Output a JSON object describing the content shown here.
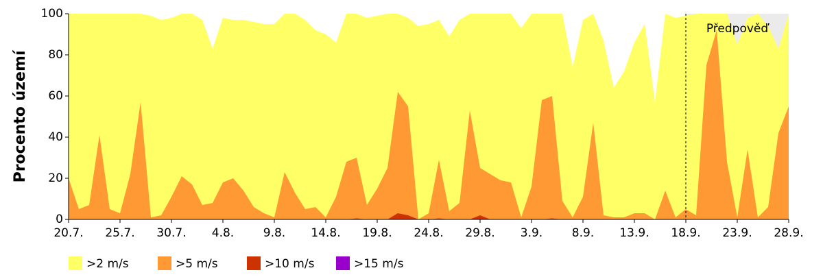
{
  "chart_data": {
    "type": "area",
    "y_label": "Procento území",
    "annotation": "Předpověď",
    "categories": [
      "20.7.",
      null,
      null,
      null,
      null,
      "25.7.",
      null,
      null,
      null,
      null,
      "30.7.",
      null,
      null,
      null,
      null,
      "4.8.",
      null,
      null,
      null,
      null,
      "9.8.",
      null,
      null,
      null,
      null,
      "14.8.",
      null,
      null,
      null,
      null,
      "19.8.",
      null,
      null,
      null,
      null,
      "24.8.",
      null,
      null,
      null,
      null,
      "29.8.",
      null,
      null,
      null,
      null,
      "3.9.",
      null,
      null,
      null,
      null,
      "8.9.",
      null,
      null,
      null,
      null,
      "13.9.",
      null,
      null,
      null,
      null,
      "18.9.",
      null,
      null,
      null,
      null,
      "23.9.",
      null,
      null,
      null,
      null,
      "28.9."
    ],
    "ylim": [
      0,
      100
    ],
    "yticks": [
      0,
      20,
      40,
      60,
      80,
      100
    ],
    "series": [
      {
        "name": ">2 m/s",
        "color": "#ffff66",
        "values": [
          100,
          100,
          100,
          100,
          100,
          100,
          100,
          100,
          99,
          97,
          98,
          100,
          100,
          97,
          83,
          98,
          97,
          97,
          96,
          95,
          95,
          100,
          100,
          97,
          92,
          90,
          86,
          100,
          100,
          98,
          99,
          100,
          100,
          98,
          94,
          95,
          97,
          89,
          97,
          100,
          100,
          100,
          100,
          100,
          93,
          100,
          100,
          100,
          100,
          74,
          97,
          100,
          87,
          64,
          72,
          86,
          95,
          57,
          100,
          98,
          99,
          100,
          100,
          100,
          100,
          85,
          98,
          100,
          94,
          83,
          100
        ]
      },
      {
        "name": ">5 m/s",
        "color": "#ff9933",
        "values": [
          20,
          5,
          7,
          41,
          5,
          3,
          22,
          57,
          1,
          2,
          11,
          21,
          17,
          7,
          8,
          18,
          20,
          14,
          6,
          3,
          1,
          23,
          13,
          5,
          6,
          1,
          11,
          28,
          30,
          7,
          15,
          25,
          62,
          55,
          0,
          3,
          29,
          4,
          8,
          53,
          25,
          22,
          19,
          18,
          1,
          16,
          58,
          60,
          9,
          1,
          11,
          47,
          2,
          1,
          1,
          3,
          3,
          0,
          14,
          1,
          5,
          2,
          75,
          92,
          28,
          1,
          34,
          1,
          6,
          42,
          55
        ]
      },
      {
        "name": ">10 m/s",
        "color": "#cc3300",
        "values": [
          0,
          0,
          0,
          0,
          0,
          0,
          0,
          0,
          0,
          0,
          0,
          0,
          0,
          0,
          0,
          0,
          0,
          0,
          0,
          0,
          0,
          0,
          0,
          0,
          0,
          0,
          0,
          0,
          0.5,
          0,
          0,
          0,
          3,
          2,
          0,
          0,
          0.5,
          0,
          0,
          0,
          2,
          0,
          0,
          0,
          0,
          0,
          0,
          0.5,
          0,
          0,
          0,
          0,
          0,
          0,
          0,
          0,
          0,
          0,
          0,
          0,
          0,
          0,
          0,
          0,
          0,
          0,
          0,
          0,
          0,
          0,
          0
        ]
      },
      {
        "name": ">15 m/s",
        "color": "#9900cc",
        "values": [
          0,
          0,
          0,
          0,
          0,
          0,
          0,
          0,
          0,
          0,
          0,
          0,
          0,
          0,
          0,
          0,
          0,
          0,
          0,
          0,
          0,
          0,
          0,
          0,
          0,
          0,
          0,
          0,
          0,
          0,
          0,
          0,
          0,
          0,
          0,
          0,
          0,
          0,
          0,
          0,
          0,
          0,
          0,
          0,
          0,
          0,
          0,
          0,
          0,
          0,
          0,
          0,
          0,
          0,
          0,
          0,
          0,
          0,
          0,
          0,
          0,
          0,
          0,
          0,
          0,
          0,
          0,
          0,
          0,
          0,
          0
        ]
      }
    ]
  }
}
